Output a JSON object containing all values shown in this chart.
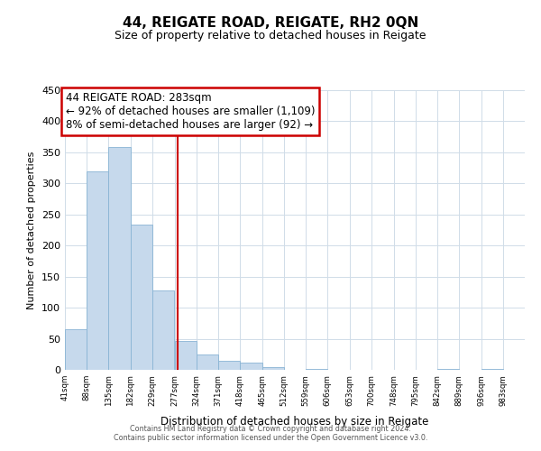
{
  "title": "44, REIGATE ROAD, REIGATE, RH2 0QN",
  "subtitle": "Size of property relative to detached houses in Reigate",
  "xlabel": "Distribution of detached houses by size in Reigate",
  "ylabel": "Number of detached properties",
  "bar_color": "#c6d9ec",
  "bar_edge_color": "#89b4d4",
  "bin_labels": [
    "41sqm",
    "88sqm",
    "135sqm",
    "182sqm",
    "229sqm",
    "277sqm",
    "324sqm",
    "371sqm",
    "418sqm",
    "465sqm",
    "512sqm",
    "559sqm",
    "606sqm",
    "653sqm",
    "700sqm",
    "748sqm",
    "795sqm",
    "842sqm",
    "889sqm",
    "936sqm",
    "983sqm"
  ],
  "bin_edges": [
    41,
    88,
    135,
    182,
    229,
    277,
    324,
    371,
    418,
    465,
    512,
    559,
    606,
    653,
    700,
    748,
    795,
    842,
    889,
    936,
    983
  ],
  "bar_heights": [
    65,
    320,
    358,
    233,
    128,
    46,
    24,
    15,
    11,
    4,
    0,
    1,
    0,
    0,
    0,
    0,
    0,
    1,
    0,
    1
  ],
  "property_size": 283,
  "vline_color": "#cc0000",
  "annotation_line1": "44 REIGATE ROAD: 283sqm",
  "annotation_line2": "← 92% of detached houses are smaller (1,109)",
  "annotation_line3": "8% of semi-detached houses are larger (92) →",
  "annotation_box_color": "#ffffff",
  "annotation_box_edge_color": "#cc0000",
  "ylim": [
    0,
    450
  ],
  "yticks": [
    0,
    50,
    100,
    150,
    200,
    250,
    300,
    350,
    400,
    450
  ],
  "footer_line1": "Contains HM Land Registry data © Crown copyright and database right 2024.",
  "footer_line2": "Contains public sector information licensed under the Open Government Licence v3.0.",
  "background_color": "#ffffff",
  "grid_color": "#d0dce8"
}
